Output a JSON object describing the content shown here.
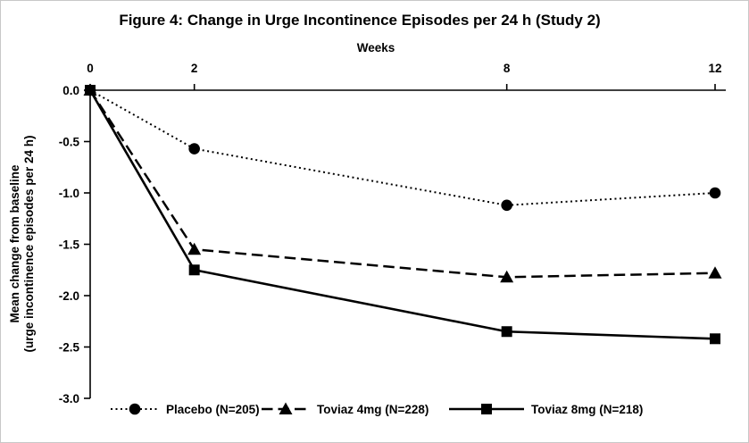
{
  "chart_data": {
    "type": "line",
    "title": "Figure 4: Change in Urge Incontinence Episodes per 24 h (Study 2)",
    "xlabel": "Weeks",
    "ylabel": "Mean change from baseline (urge incontinence episodes per 24 h)",
    "ylabel_lines": [
      "Mean change from baseline",
      "(urge incontinence episodes per 24 h)"
    ],
    "x": [
      0,
      2,
      8,
      12
    ],
    "xtick_labels": [
      "0",
      "2",
      "8",
      "12"
    ],
    "xlim": [
      0,
      12
    ],
    "ylim": [
      -3.0,
      0.0
    ],
    "yticks": [
      0.0,
      -0.5,
      -1.0,
      -1.5,
      -2.0,
      -2.5,
      -3.0
    ],
    "ytick_labels": [
      "0.0",
      "-0.5",
      "-1.0",
      "-1.5",
      "-2.0",
      "-2.5",
      "-3.0"
    ],
    "x_axis_position": "top",
    "grid": false,
    "legend_position": "bottom",
    "line_color": "#000000",
    "background": "#ffffff",
    "series": [
      {
        "name": "Placebo (N=205)",
        "marker": "circle",
        "line_style": "dotted",
        "values": [
          0.0,
          -0.57,
          -1.12,
          -1.0
        ]
      },
      {
        "name": "Toviaz 4mg (N=228)",
        "marker": "triangle",
        "line_style": "dashed",
        "values": [
          0.0,
          -1.55,
          -1.82,
          -1.78
        ]
      },
      {
        "name": "Toviaz 8mg (N=218)",
        "marker": "square",
        "line_style": "solid",
        "values": [
          0.0,
          -1.75,
          -2.35,
          -2.42
        ]
      }
    ]
  }
}
